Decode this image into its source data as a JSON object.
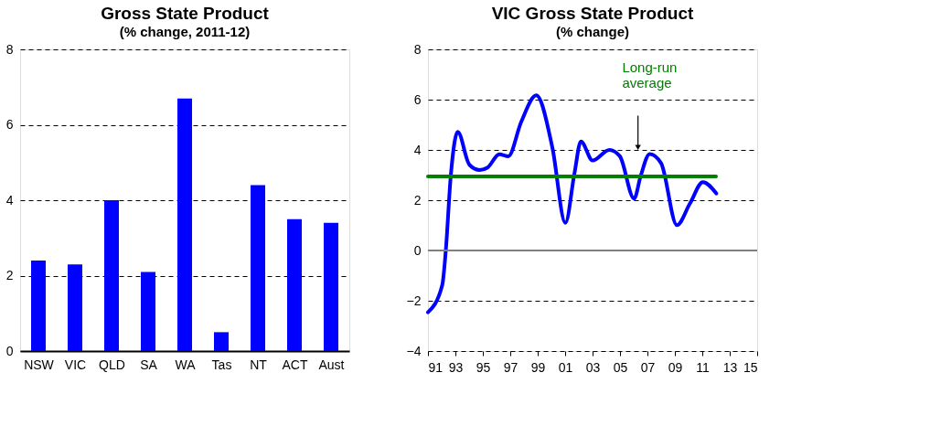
{
  "chart_data": [
    {
      "type": "bar",
      "title": "Gross State Product",
      "subtitle": "(% change, 2011-12)",
      "categories": [
        "NSW",
        "VIC",
        "QLD",
        "SA",
        "WA",
        "Tas",
        "NT",
        "ACT",
        "Aust"
      ],
      "values": [
        2.4,
        2.3,
        4.0,
        2.1,
        6.7,
        0.5,
        4.4,
        3.5,
        3.4
      ],
      "color": "#0000ff",
      "ylim": [
        0,
        8
      ],
      "yticks": [
        0,
        2,
        4,
        6,
        8
      ],
      "grid": "y"
    },
    {
      "type": "line",
      "title": "VIC Gross State Product",
      "subtitle": "(% change)",
      "xlim": [
        1991,
        2015
      ],
      "xticks": [
        {
          "value": 1991,
          "label": "91"
        },
        {
          "value": 1993,
          "label": "93"
        },
        {
          "value": 1995,
          "label": "95"
        },
        {
          "value": 1997,
          "label": "97"
        },
        {
          "value": 1999,
          "label": "99"
        },
        {
          "value": 2001,
          "label": "01"
        },
        {
          "value": 2003,
          "label": "03"
        },
        {
          "value": 2005,
          "label": "05"
        },
        {
          "value": 2007,
          "label": "07"
        },
        {
          "value": 2009,
          "label": "09"
        },
        {
          "value": 2011,
          "label": "11"
        },
        {
          "value": 2013,
          "label": "13"
        },
        {
          "value": 2015,
          "label": "15"
        }
      ],
      "ylim": [
        -4,
        8
      ],
      "yticks": [
        -4,
        -2,
        0,
        2,
        4,
        6,
        8
      ],
      "grid": "y",
      "marker": "none",
      "line_style": "solid",
      "series": [
        {
          "color": "#0000ff",
          "x": [
            1991.0,
            1992.04,
            1992.3,
            1992.66,
            1993.17,
            1994.02,
            1994.78,
            1995.35,
            1996.2,
            1996.86,
            1997.8,
            1998.9,
            2000.07,
            2001.02,
            2001.68,
            2002.15,
            2003.0,
            2004.23,
            2004.99,
            2006.03,
            2006.5,
            2007.16,
            2008.0,
            2009.15,
            2010.1,
            2011.04,
            2012.02
          ],
          "values": [
            -2.46,
            -1.38,
            0,
            2.95,
            4.72,
            3.41,
            3.2,
            3.3,
            3.83,
            3.75,
            5.12,
            6.17,
            4.09,
            1.1,
            3.07,
            4.34,
            3.58,
            4.0,
            3.75,
            2.06,
            2.95,
            3.84,
            3.47,
            1.01,
            1.87,
            2.72,
            2.27
          ]
        },
        {
          "name": "Long-run average",
          "color": "#008000",
          "x": [
            1991,
            2012
          ],
          "values": [
            2.95,
            2.95
          ]
        }
      ],
      "ref_lines": [
        {
          "axis": "y",
          "value": 0,
          "color": "#808080",
          "line_style": "solid"
        }
      ]
    }
  ]
}
